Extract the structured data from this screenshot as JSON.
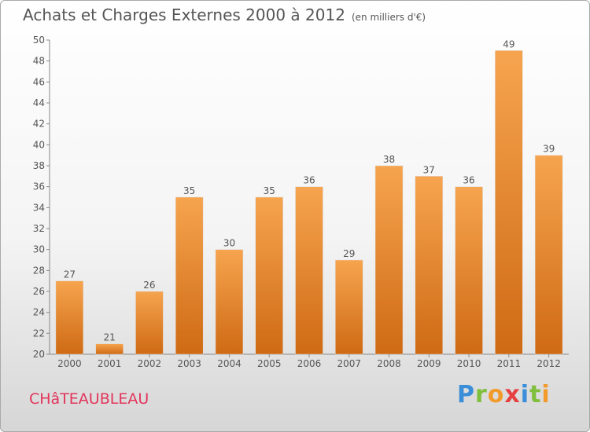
{
  "chart_data": {
    "type": "bar",
    "title": "Achats et Charges Externes 2000 à 2012",
    "subtitle": "(en milliers d'€)",
    "categories": [
      "2000",
      "2001",
      "2002",
      "2003",
      "2004",
      "2005",
      "2006",
      "2007",
      "2008",
      "2009",
      "2010",
      "2011",
      "2012"
    ],
    "values": [
      27,
      21,
      26,
      35,
      30,
      35,
      36,
      29,
      38,
      37,
      36,
      49,
      39
    ],
    "ylim": [
      20,
      50
    ],
    "yticks": [
      20,
      22,
      24,
      26,
      28,
      30,
      32,
      34,
      36,
      38,
      40,
      42,
      44,
      46,
      48,
      50
    ],
    "grid": false,
    "bar_color": "#f0953c"
  },
  "footer": {
    "town": "CHâTEAUBLEAU",
    "brand_letters": [
      {
        "ch": "P",
        "color": "#3b8ed8"
      },
      {
        "ch": "r",
        "color": "#7fbf3b"
      },
      {
        "ch": "o",
        "color": "#f29b2d"
      },
      {
        "ch": "x",
        "color": "#e63f3f"
      },
      {
        "ch": "i",
        "color": "#3b8ed8"
      },
      {
        "ch": "t",
        "color": "#7fbf3b"
      },
      {
        "ch": "i",
        "color": "#f29b2d"
      }
    ]
  }
}
